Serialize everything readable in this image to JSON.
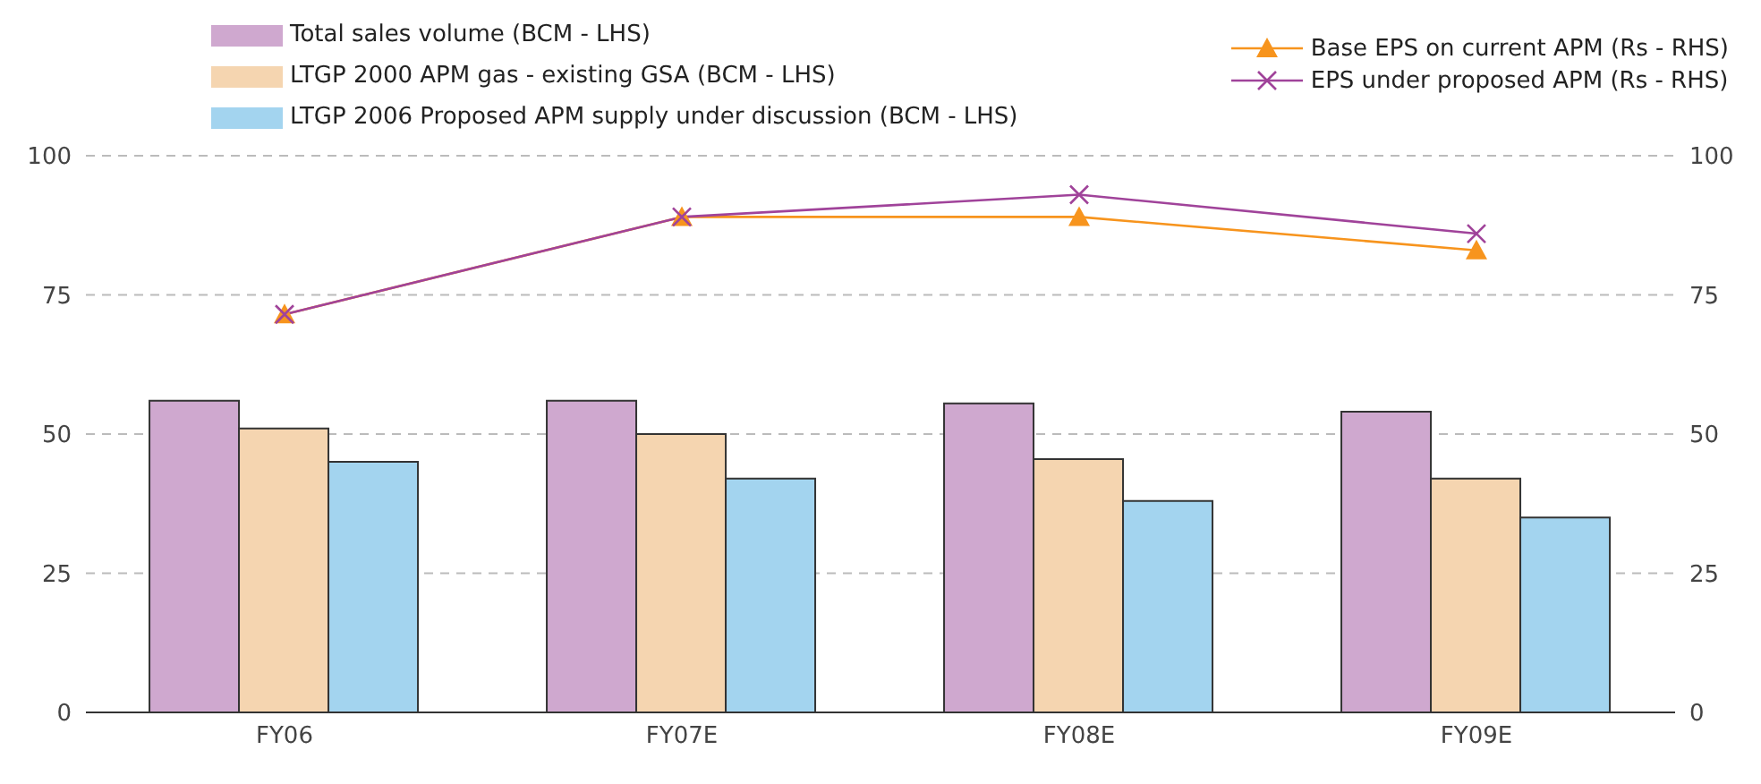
{
  "chart_data": {
    "type": "bar",
    "categories": [
      "FY06",
      "FY07E",
      "FY08E",
      "FY09E"
    ],
    "series": [
      {
        "name": "Total sales volume (BCM - LHS)",
        "color": "#cfa8cf",
        "values": [
          56,
          56,
          55.5,
          54
        ]
      },
      {
        "name": "LTGP 2000 APM gas - existing GSA (BCM - LHS)",
        "color": "#f5d5b0",
        "values": [
          51,
          50,
          45.5,
          42
        ]
      },
      {
        "name": "LTGP 2006 Proposed APM supply under discussion (BCM - LHS)",
        "color": "#a3d4ef",
        "values": [
          45,
          42,
          38,
          35
        ]
      },
      {
        "name": "Base EPS on current APM (Rs - RHS)",
        "type": "line",
        "axis": "y2",
        "color": "#f7941d",
        "marker": "triangle",
        "values": [
          71.5,
          89,
          89,
          83
        ]
      },
      {
        "name": "EPS under proposed APM (Rs - RHS)",
        "type": "line",
        "axis": "y2",
        "color": "#a0439a",
        "marker": "cross",
        "values": [
          71.5,
          89,
          93,
          86
        ]
      }
    ],
    "ylim": [
      0,
      100
    ],
    "yticks": [
      0,
      25,
      50,
      75,
      100
    ],
    "y2lim": [
      0,
      100
    ],
    "y2ticks": [
      0,
      25,
      50,
      75,
      100
    ],
    "grid": "y",
    "legend": "top"
  }
}
